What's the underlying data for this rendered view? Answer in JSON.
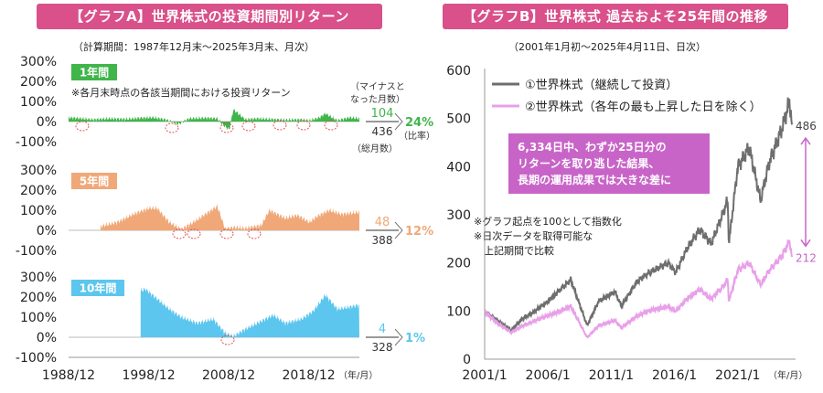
{
  "panel_a": {
    "header": "【グラフA】世界株式の投資期間別リターン",
    "subtitle": "（計算期間：1987年12月末〜2025年3月末、月次）",
    "note": "※各月末時点の各該当期間における投資リターン",
    "minus_label_1": "（マイナスと",
    "minus_label_2": "なった月数）",
    "total_label": "（総月数）",
    "ratio_label": "（比率）",
    "x_unit": "（年/月）"
  },
  "panel_b": {
    "header": "【グラフB】世界株式 過去およそ25年間の推移",
    "subtitle": "（2001年1月初〜2025年4月11日、日次）",
    "callout_lines": [
      "6,334日中、わずか25日分の",
      "リターンを取り逃した結果、",
      "長期の運用成果では大きな差に"
    ],
    "note_lines": [
      "※グラフ起点を100として指数化",
      "※日次データを取得可能な",
      "　上記期間で比較"
    ],
    "x_unit": "（年/月）"
  },
  "chart_data": [
    {
      "type": "area",
      "title": "世界株式の投資期間別リターン",
      "x_ticks": [
        "1988/12",
        "1998/12",
        "2008/12",
        "2018/12"
      ],
      "y_ticks": [
        "300%",
        "200%",
        "100%",
        "0%",
        "-100%"
      ],
      "ylim": [
        -100,
        300
      ],
      "series": [
        {
          "name": "1年間",
          "color": "#3fb54a",
          "start": 1988.92,
          "x": [
            1988.9,
            1990.5,
            1992,
            1994,
            1996,
            1998,
            1999.5,
            2001,
            2002.7,
            2004,
            2006,
            2007.5,
            2008.3,
            2009,
            2009.5,
            2011,
            2012.5,
            2014,
            2016,
            2018,
            2019,
            2020.3,
            2021,
            2022.5,
            2024,
            2025.2
          ],
          "values": [
            20,
            15,
            10,
            15,
            12,
            18,
            20,
            10,
            -12,
            15,
            18,
            15,
            -20,
            -40,
            60,
            10,
            15,
            12,
            8,
            10,
            5,
            20,
            40,
            5,
            20,
            15
          ],
          "minus_months": "104",
          "total_months": "436",
          "ratio": "24%"
        },
        {
          "name": "5年間",
          "color": "#f0a878",
          "start": 1992.92,
          "x": [
            1992.9,
            1995,
            1997,
            1999,
            2000,
            2001.5,
            2003,
            2004.5,
            2006,
            2007.5,
            2008.5,
            2009.5,
            2011,
            2013,
            2014,
            2016,
            2017.5,
            2019,
            2020,
            2021.5,
            2023,
            2025.2
          ],
          "values": [
            20,
            40,
            80,
            110,
            110,
            40,
            5,
            40,
            80,
            120,
            5,
            15,
            10,
            25,
            100,
            60,
            75,
            40,
            70,
            100,
            80,
            90
          ],
          "minus_months": "48",
          "total_months": "388",
          "ratio": "12%"
        },
        {
          "name": "10年間",
          "color": "#5cc6ee",
          "start": 1997.92,
          "x": [
            1997.9,
            1998.5,
            2000,
            2001.5,
            2003,
            2005,
            2007,
            2008.5,
            2009.5,
            2011,
            2013,
            2014.5,
            2016,
            2018,
            2019.5,
            2021,
            2022.5,
            2024,
            2025.2
          ],
          "values": [
            230,
            240,
            190,
            140,
            100,
            70,
            90,
            20,
            5,
            40,
            80,
            110,
            70,
            90,
            130,
            210,
            140,
            150,
            160
          ],
          "minus_months": "4",
          "total_months": "328",
          "ratio": "1%"
        }
      ]
    },
    {
      "type": "line",
      "title": "世界株式 過去およそ25年間の推移",
      "x_ticks": [
        "2001/1",
        "2006/1",
        "2011/1",
        "2016/1",
        "2021/1"
      ],
      "y_ticks": [
        0,
        100,
        200,
        300,
        400,
        500,
        600
      ],
      "ylim": [
        0,
        600
      ],
      "series": [
        {
          "name": "①世界株式（継続して投資）",
          "color": "#6e6e6e",
          "x": [
            2001,
            2002,
            2003.1,
            2004,
            2005,
            2006,
            2007.8,
            2009.1,
            2010,
            2011.3,
            2011.8,
            2013,
            2014,
            2015.5,
            2016.1,
            2017,
            2018,
            2018.9,
            2019.8,
            2020.2,
            2020.3,
            2021,
            2021.9,
            2022.8,
            2023.5,
            2024.5,
            2025.1,
            2025.28
          ],
          "values": [
            100,
            80,
            60,
            85,
            100,
            120,
            165,
            70,
            120,
            140,
            110,
            160,
            180,
            200,
            180,
            230,
            270,
            240,
            300,
            330,
            240,
            400,
            440,
            330,
            410,
            480,
            535,
            486
          ],
          "end_label": "486"
        },
        {
          "name": "②世界株式（各年の最も上昇した日を除く）",
          "color": "#e8a0e8",
          "x": [
            2001,
            2002,
            2003.1,
            2004,
            2005,
            2006,
            2007.8,
            2009.1,
            2010,
            2011.3,
            2011.8,
            2013,
            2014,
            2015.5,
            2016.1,
            2017,
            2018,
            2018.9,
            2019.8,
            2020.2,
            2020.3,
            2021,
            2021.9,
            2022.8,
            2023.5,
            2024.5,
            2025.1,
            2025.28
          ],
          "values": [
            100,
            75,
            55,
            70,
            80,
            90,
            110,
            45,
            70,
            80,
            65,
            90,
            100,
            110,
            100,
            125,
            145,
            125,
            150,
            165,
            120,
            185,
            200,
            155,
            185,
            215,
            245,
            212
          ],
          "end_label": "212"
        }
      ]
    }
  ]
}
